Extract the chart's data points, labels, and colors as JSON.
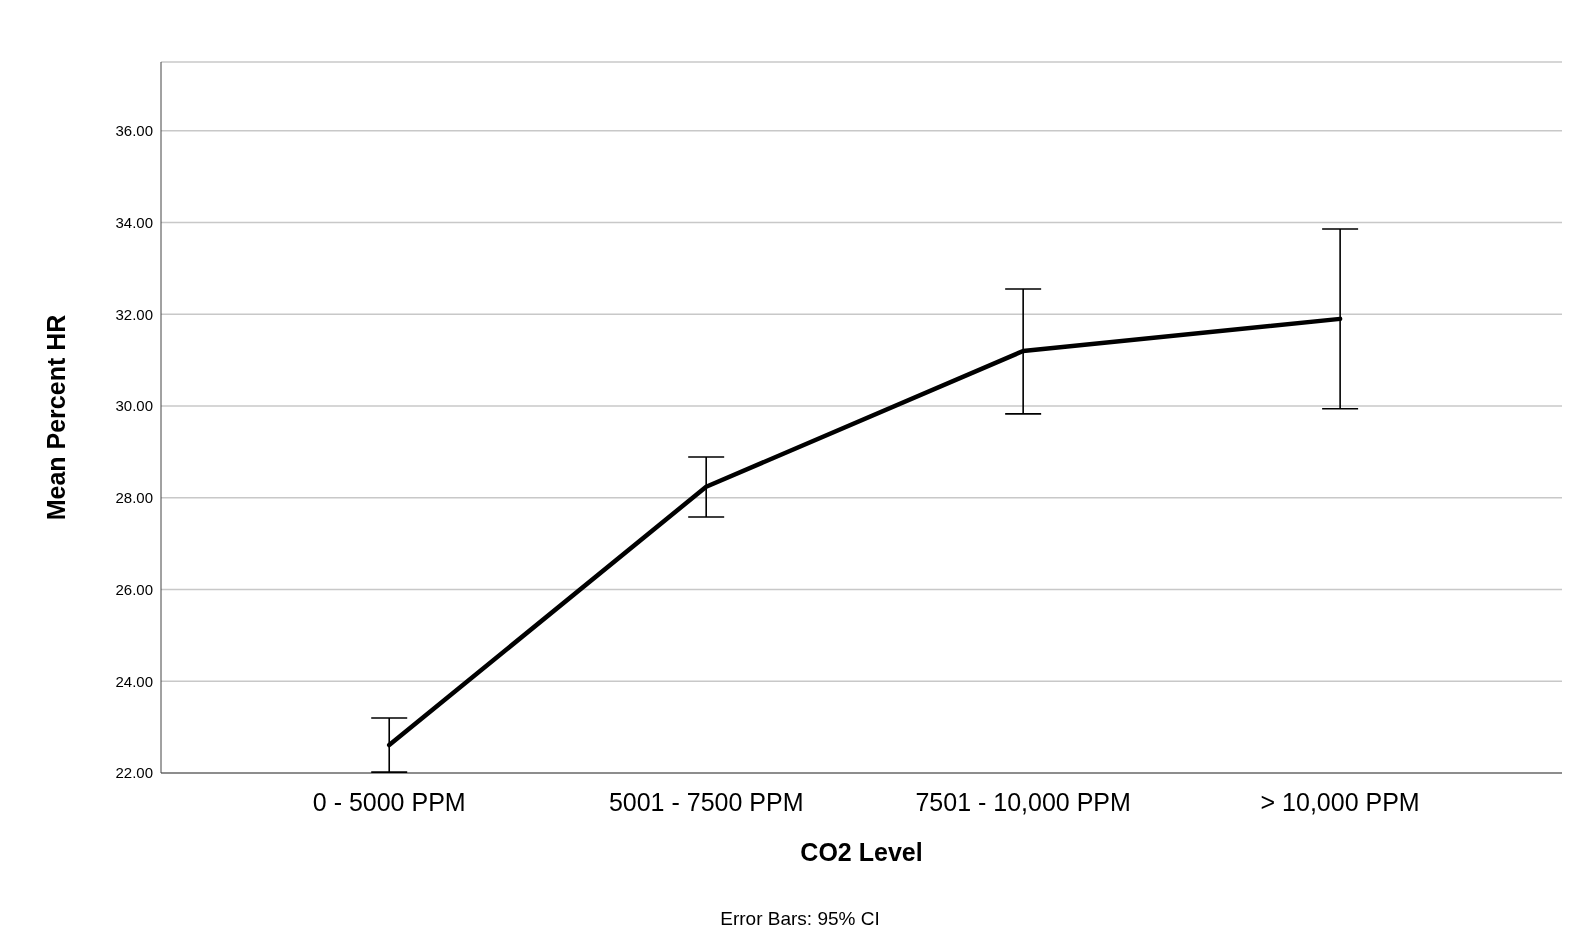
{
  "chart_data": {
    "type": "line",
    "xlabel": "CO2 Level",
    "ylabel": "Mean Percent HR",
    "categories": [
      "0 - 5000 PPM",
      "5001 - 7500 PPM",
      "7501 - 10,000 PPM",
      "> 10,000 PPM"
    ],
    "color": "#000000",
    "values": [
      22.61,
      28.24,
      31.2,
      31.9
    ],
    "errors": [
      [
        22.02,
        23.2
      ],
      [
        27.58,
        28.89
      ],
      [
        29.83,
        32.55
      ],
      [
        29.94,
        33.86
      ]
    ],
    "ylim": [
      22,
      37.5
    ],
    "yticks": [
      {
        "value": 22,
        "label": "22.00"
      },
      {
        "value": 24,
        "label": "24.00"
      },
      {
        "value": 26,
        "label": "26.00"
      },
      {
        "value": 28,
        "label": "28.00"
      },
      {
        "value": 30,
        "label": "30.00"
      },
      {
        "value": 32,
        "label": "32.00"
      },
      {
        "value": 34,
        "label": "34.00"
      },
      {
        "value": 36,
        "label": "36.00"
      }
    ],
    "grid": "y",
    "legend": false,
    "marker": "none",
    "line_style": "solid",
    "annotations": [
      "Error Bars: 95% CI"
    ]
  }
}
